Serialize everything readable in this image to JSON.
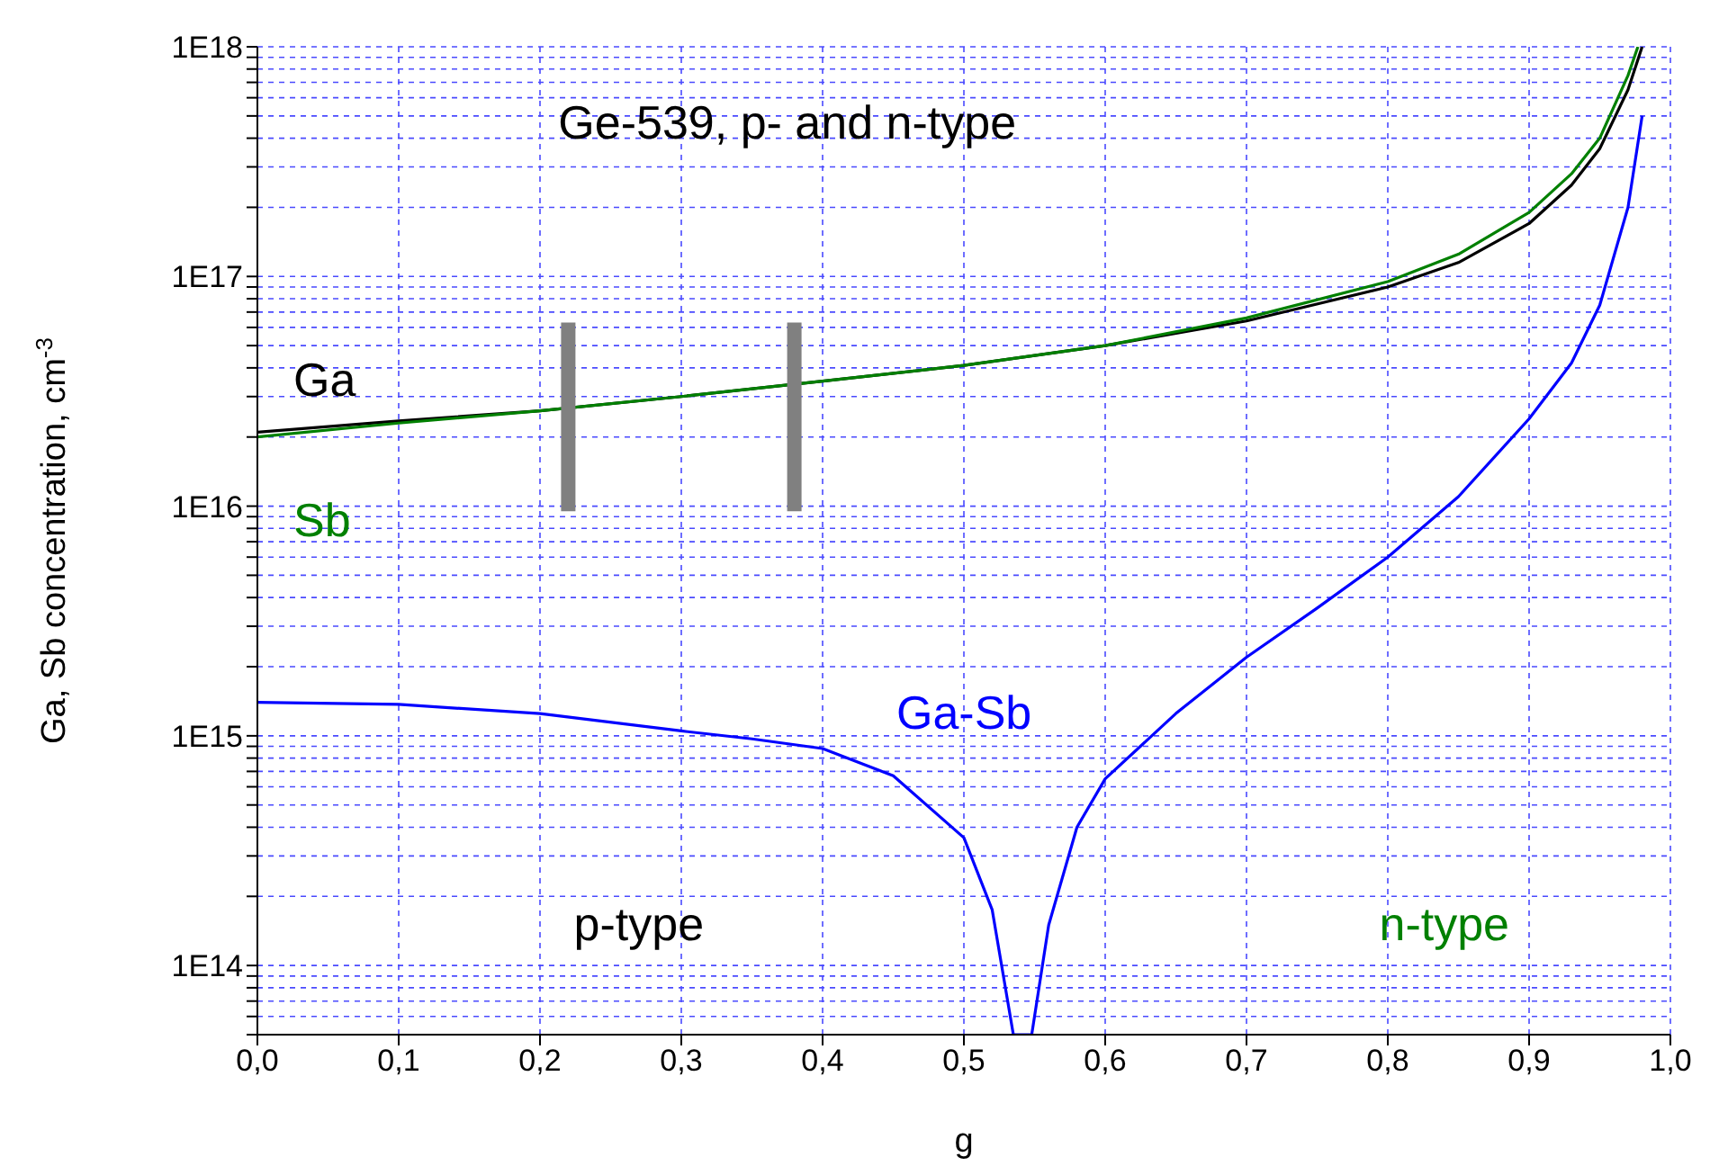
{
  "chart_data": {
    "type": "line",
    "title": "Ge-539, p- and n-type",
    "xlabel": "g",
    "ylabel": "Ga, Sb concentration, cm$^{-3}$",
    "log": "y",
    "grid": true,
    "xlim": [
      0,
      1
    ],
    "xticks": [
      {
        "value": 0,
        "label": "0,0"
      },
      {
        "value": 0.1,
        "label": "0,1"
      },
      {
        "value": 0.2,
        "label": "0,2"
      },
      {
        "value": 0.3,
        "label": "0,3"
      },
      {
        "value": 0.4,
        "label": "0,4"
      },
      {
        "value": 0.5,
        "label": "0,5"
      },
      {
        "value": 0.6,
        "label": "0,6"
      },
      {
        "value": 0.7,
        "label": "0,7"
      },
      {
        "value": 0.8,
        "label": "0,8"
      },
      {
        "value": 0.9,
        "label": "0,9"
      },
      {
        "value": 1,
        "label": "1,0"
      }
    ],
    "ylim": [
      50000000000000.0,
      1e+18
    ],
    "yticks": [
      {
        "value": 50000000000000.0,
        "label": null
      },
      {
        "value": 60000000000000.0,
        "label": null
      },
      {
        "value": 70000000000000.0,
        "label": null
      },
      {
        "value": 80000000000000.0,
        "label": null
      },
      {
        "value": 90000000000000.0,
        "label": null
      },
      {
        "value": 100000000000000.0,
        "label": "1E14"
      },
      {
        "value": 200000000000000.0,
        "label": null
      },
      {
        "value": 300000000000000.0,
        "label": null
      },
      {
        "value": 400000000000000.0,
        "label": null
      },
      {
        "value": 500000000000000.0,
        "label": null
      },
      {
        "value": 600000000000000.0,
        "label": null
      },
      {
        "value": 700000000000000.0,
        "label": null
      },
      {
        "value": 800000000000000.0,
        "label": null
      },
      {
        "value": 900000000000000.0,
        "label": null
      },
      {
        "value": 1000000000000000.0,
        "label": "1E15"
      },
      {
        "value": 2000000000000000.0,
        "label": null
      },
      {
        "value": 3000000000000000.0,
        "label": null
      },
      {
        "value": 4000000000000000.0,
        "label": null
      },
      {
        "value": 5000000000000000.0,
        "label": null
      },
      {
        "value": 6000000000000000.0,
        "label": null
      },
      {
        "value": 7000000000000000.0,
        "label": null
      },
      {
        "value": 8000000000000000.0,
        "label": null
      },
      {
        "value": 9000000000000000.0,
        "label": null
      },
      {
        "value": 1e+16,
        "label": "1E16"
      },
      {
        "value": 2e+16,
        "label": null
      },
      {
        "value": 3e+16,
        "label": null
      },
      {
        "value": 4e+16,
        "label": null
      },
      {
        "value": 5e+16,
        "label": null
      },
      {
        "value": 6e+16,
        "label": null
      },
      {
        "value": 7e+16,
        "label": null
      },
      {
        "value": 8e+16,
        "label": null
      },
      {
        "value": 9e+16,
        "label": null
      },
      {
        "value": 1e+17,
        "label": "1E17"
      },
      {
        "value": 2e+17,
        "label": null
      },
      {
        "value": 3e+17,
        "label": null
      },
      {
        "value": 4e+17,
        "label": null
      },
      {
        "value": 5e+17,
        "label": null
      },
      {
        "value": 6e+17,
        "label": null
      },
      {
        "value": 7e+17,
        "label": null
      },
      {
        "value": 8e+17,
        "label": null
      },
      {
        "value": 9e+17,
        "label": null
      },
      {
        "value": 1e+18,
        "label": "1E18"
      }
    ],
    "series": [
      {
        "name": "Ga",
        "color": "#000000",
        "x": [
          0,
          0.1,
          0.2,
          0.3,
          0.4,
          0.5,
          0.6,
          0.7,
          0.8,
          0.85,
          0.9,
          0.93,
          0.95,
          0.97,
          0.98
        ],
        "values": [
          2.1e+16,
          2.35e+16,
          2.6e+16,
          3e+16,
          3.5e+16,
          4.1e+16,
          5e+16,
          6.4e+16,
          9e+16,
          1.15e+17,
          1.7e+17,
          2.5e+17,
          3.6e+17,
          6.5e+17,
          1e+18
        ]
      },
      {
        "name": "Sb",
        "color": "#008000",
        "x": [
          0,
          0.1,
          0.2,
          0.3,
          0.4,
          0.5,
          0.6,
          0.7,
          0.8,
          0.85,
          0.9,
          0.93,
          0.95,
          0.97,
          0.977
        ],
        "values": [
          2e+16,
          2.3e+16,
          2.6e+16,
          3e+16,
          3.5e+16,
          4.1e+16,
          5e+16,
          6.6e+16,
          9.5e+16,
          1.25e+17,
          1.9e+17,
          2.8e+17,
          4e+17,
          7.5e+17,
          1e+18
        ]
      },
      {
        "name": "Ga-Sb",
        "color": "#0000ff",
        "x": [
          0,
          0.1,
          0.2,
          0.3,
          0.35,
          0.4,
          0.45,
          0.5,
          0.52,
          0.535,
          0.548,
          0.56,
          0.58,
          0.6,
          0.65,
          0.7,
          0.75,
          0.8,
          0.85,
          0.9,
          0.93,
          0.95,
          0.97,
          0.98
        ],
        "values": [
          1400000000000000.0,
          1370000000000000.0,
          1250000000000000.0,
          1050000000000000.0,
          970000000000000.0,
          880000000000000.0,
          670000000000000.0,
          360000000000000.0,
          175000000000000.0,
          50000000000000.0,
          50000000000000.0,
          150000000000000.0,
          400000000000000.0,
          650000000000000.0,
          1250000000000000.0,
          2200000000000000.0,
          3600000000000000.0,
          6000000000000000.0,
          1.1e+16,
          2.4e+16,
          4.2e+16,
          7.5e+16,
          2e+17,
          5e+17
        ]
      },
      {
        "color": "#808080",
        "x": [
          0.22,
          0.22
        ],
        "values": [
          9500000000000000.0,
          6.3e+16
        ]
      },
      {
        "color": "#808080",
        "x": [
          0.38,
          0.38
        ],
        "values": [
          9500000000000000.0,
          6.3e+16
        ]
      }
    ],
    "annotations": [
      "p-type",
      "n-type"
    ]
  }
}
